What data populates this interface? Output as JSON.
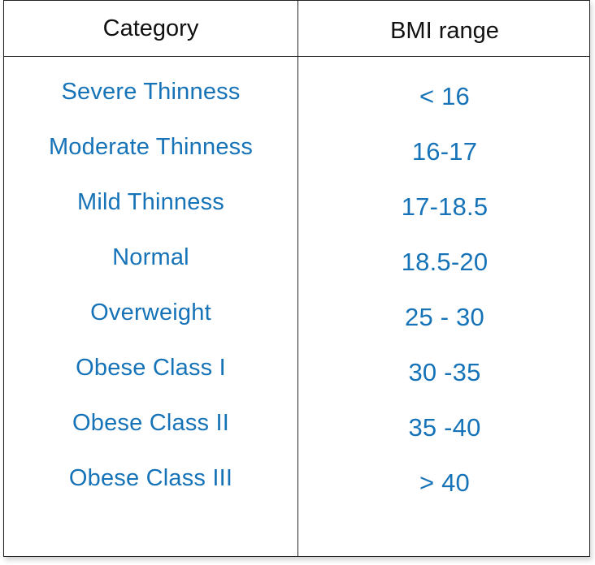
{
  "table": {
    "headers": {
      "category": "Category",
      "bmi_range": "BMI range"
    },
    "rows": [
      {
        "category": "Severe Thinness",
        "bmi_range": "< 16"
      },
      {
        "category": "Moderate Thinness",
        "bmi_range": "16-17"
      },
      {
        "category": "Mild Thinness",
        "bmi_range": "17-18.5"
      },
      {
        "category": "Normal",
        "bmi_range": "18.5-20"
      },
      {
        "category": "Overweight",
        "bmi_range": "25 - 30"
      },
      {
        "category": "Obese Class I",
        "bmi_range": "30 -35"
      },
      {
        "category": "Obese Class II",
        "bmi_range": "35 -40"
      },
      {
        "category": "Obese Class III",
        "bmi_range": "> 40"
      }
    ]
  },
  "colors": {
    "header_text": "#111111",
    "body_text": "#1673b8",
    "border": "#222222"
  }
}
